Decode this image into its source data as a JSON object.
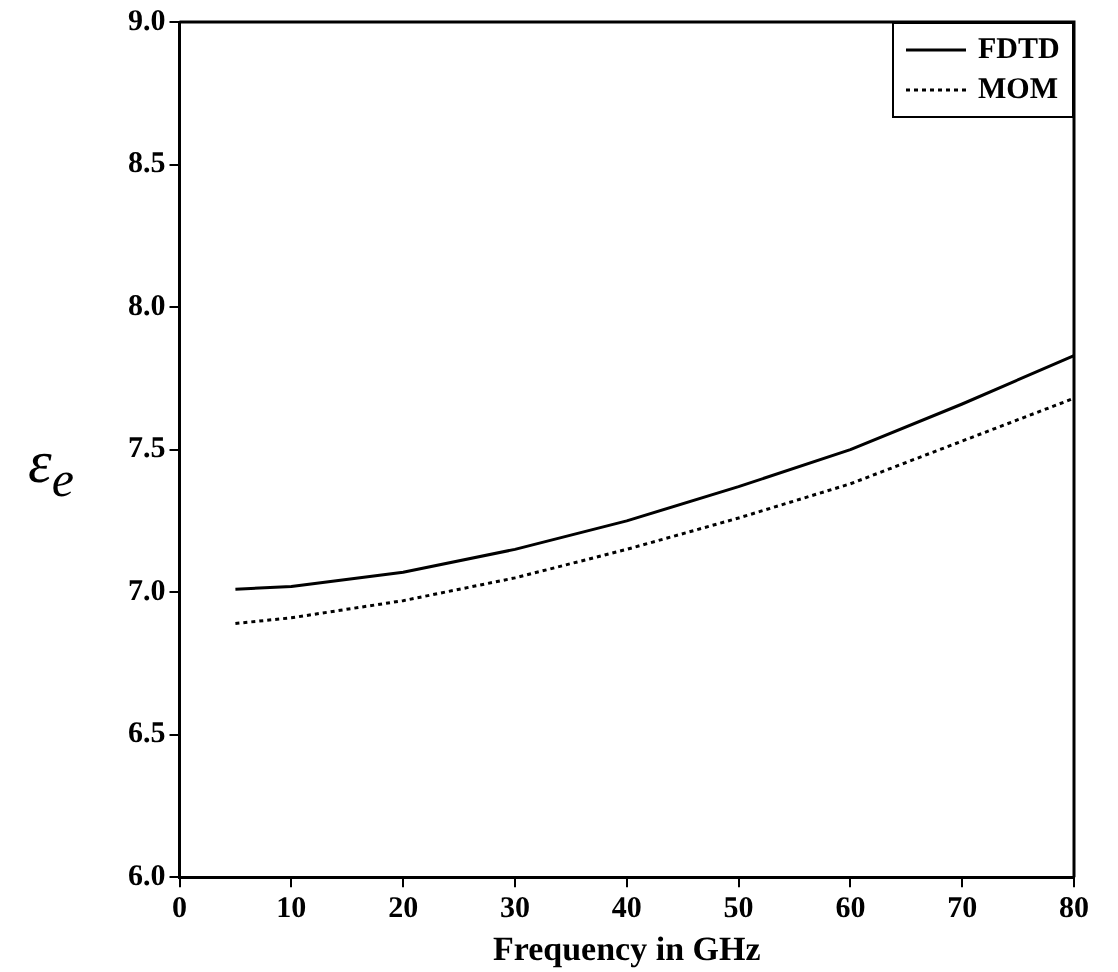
{
  "chart_data": {
    "type": "line",
    "xlabel": "Frequency in GHz",
    "ylabel": "ε$_{e}$",
    "x": [
      5,
      10,
      20,
      30,
      40,
      50,
      60,
      70,
      80
    ],
    "series": [
      {
        "name": "FDTD",
        "color": "#000000",
        "line_style": "solid",
        "values": [
          7.01,
          7.02,
          7.07,
          7.15,
          7.25,
          7.37,
          7.5,
          7.66,
          7.83
        ]
      },
      {
        "name": "MOM",
        "color": "#000000",
        "line_style": "dotted",
        "values": [
          6.89,
          6.91,
          6.97,
          7.05,
          7.15,
          7.26,
          7.38,
          7.53,
          7.68
        ]
      }
    ],
    "xlim": [
      0,
      80
    ],
    "xticks": [
      0,
      10,
      20,
      30,
      40,
      50,
      60,
      70,
      80
    ],
    "ylim": [
      6,
      9
    ],
    "yticks": [
      {
        "value": 6,
        "label": "6.0"
      },
      {
        "value": 6.5,
        "label": "6.5"
      },
      {
        "value": 7,
        "label": "7.0"
      },
      {
        "value": 7.5,
        "label": "7.5"
      },
      {
        "value": 8,
        "label": "8.0"
      },
      {
        "value": 8.5,
        "label": "8.5"
      },
      {
        "value": 9,
        "label": "9.0"
      }
    ],
    "grid": false,
    "legend": "top right",
    "marker": "none"
  }
}
